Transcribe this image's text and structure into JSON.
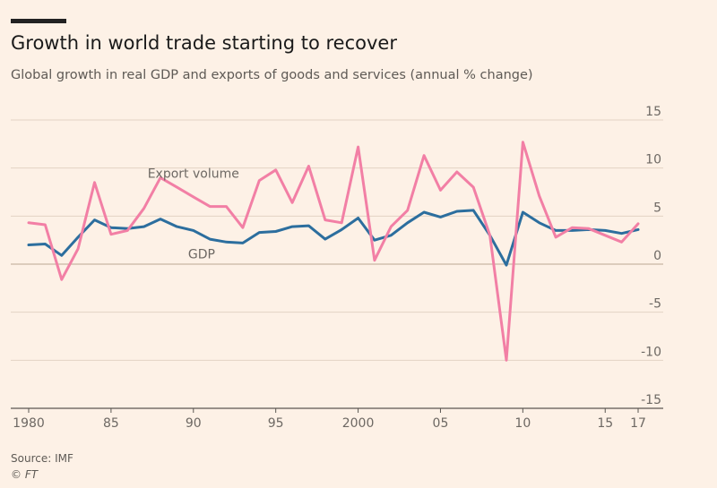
{
  "header": {
    "title": "Growth in world trade starting to recover",
    "subtitle": "Global growth in real GDP and exports of goods and services (annual % change)"
  },
  "footer": {
    "source": "Source: IMF",
    "copyright": "© FT"
  },
  "colors": {
    "background": "#fdf1e6",
    "gdp": "#2c6e9e",
    "export": "#f27fa5",
    "grid": "#e3d3c4",
    "axis": "#5b5752",
    "text": "#6d6863"
  },
  "chart_data": {
    "type": "line",
    "title": "Growth in world trade starting to recover",
    "subtitle": "Global growth in real GDP and exports of goods and services (annual % change)",
    "xlabel": "",
    "ylabel": "",
    "xlim": [
      1980,
      2017
    ],
    "ylim": [
      -15,
      15
    ],
    "y_ticks": [
      15,
      10,
      5,
      0,
      -5,
      -10,
      -15
    ],
    "y_tick_labels": [
      "15",
      "10",
      "5",
      "0",
      "-5",
      "-10",
      "-15"
    ],
    "x_ticks": [
      1980,
      1985,
      1990,
      1995,
      2000,
      2005,
      2010,
      2015,
      2017
    ],
    "x_tick_labels": [
      "1980",
      "85",
      "90",
      "95",
      "2000",
      "05",
      "10",
      "15",
      "17"
    ],
    "grid": "horizontal",
    "x": [
      1980,
      1981,
      1982,
      1983,
      1984,
      1985,
      1986,
      1987,
      1988,
      1989,
      1990,
      1991,
      1992,
      1993,
      1994,
      1995,
      1996,
      1997,
      1998,
      1999,
      2000,
      2001,
      2002,
      2003,
      2004,
      2005,
      2006,
      2007,
      2008,
      2009,
      2010,
      2011,
      2012,
      2013,
      2014,
      2015,
      2016,
      2017
    ],
    "series": [
      {
        "name": "GDP",
        "values": [
          2.0,
          2.1,
          0.9,
          2.8,
          4.6,
          3.8,
          3.7,
          3.9,
          4.7,
          3.9,
          3.5,
          2.6,
          2.3,
          2.2,
          3.3,
          3.4,
          3.9,
          4.0,
          2.6,
          3.6,
          4.8,
          2.5,
          3.0,
          4.3,
          5.4,
          4.9,
          5.5,
          5.6,
          3.0,
          -0.1,
          5.4,
          4.3,
          3.5,
          3.5,
          3.6,
          3.5,
          3.2,
          3.6
        ]
      },
      {
        "name": "Export volume",
        "values": [
          4.3,
          4.1,
          -1.6,
          1.6,
          8.5,
          3.1,
          3.5,
          5.8,
          9.0,
          8.0,
          7.0,
          6.0,
          6.0,
          3.8,
          8.7,
          9.8,
          6.4,
          10.2,
          4.6,
          4.3,
          12.2,
          0.4,
          3.9,
          5.6,
          11.3,
          7.7,
          9.6,
          8.0,
          3.0,
          -10.0,
          12.7,
          7.1,
          2.8,
          3.8,
          3.7,
          3.0,
          2.3,
          4.2
        ]
      }
    ]
  }
}
